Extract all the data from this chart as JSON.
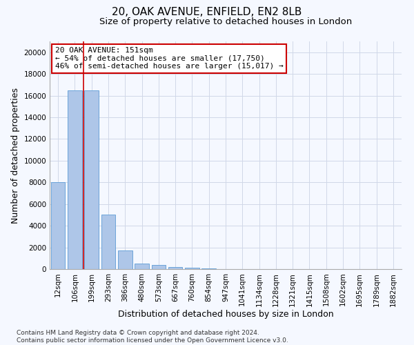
{
  "title_line1": "20, OAK AVENUE, ENFIELD, EN2 8LB",
  "title_line2": "Size of property relative to detached houses in London",
  "xlabel": "Distribution of detached houses by size in London",
  "ylabel": "Number of detached properties",
  "categories": [
    "12sqm",
    "106sqm",
    "199sqm",
    "293sqm",
    "386sqm",
    "480sqm",
    "573sqm",
    "667sqm",
    "760sqm",
    "854sqm",
    "947sqm",
    "1041sqm",
    "1134sqm",
    "1228sqm",
    "1321sqm",
    "1415sqm",
    "1508sqm",
    "1602sqm",
    "1695sqm",
    "1789sqm",
    "1882sqm"
  ],
  "values": [
    8000,
    16500,
    16500,
    5000,
    1700,
    500,
    400,
    200,
    150,
    80,
    0,
    0,
    0,
    0,
    0,
    0,
    0,
    0,
    0,
    0,
    0
  ],
  "bar_color": "#aec6e8",
  "bar_edge_color": "#5b9bd5",
  "grid_color": "#d0d8e8",
  "background_color": "#f5f8ff",
  "annotation_text": "20 OAK AVENUE: 151sqm\n← 54% of detached houses are smaller (17,750)\n46% of semi-detached houses are larger (15,017) →",
  "annotation_box_color": "#ffffff",
  "annotation_box_edge": "#cc0000",
  "red_line_x": 1.5,
  "ylim": [
    0,
    21000
  ],
  "yticks": [
    0,
    2000,
    4000,
    6000,
    8000,
    10000,
    12000,
    14000,
    16000,
    18000,
    20000
  ],
  "footnote": "Contains HM Land Registry data © Crown copyright and database right 2024.\nContains public sector information licensed under the Open Government Licence v3.0.",
  "title_fontsize": 11,
  "subtitle_fontsize": 9.5,
  "axis_label_fontsize": 9,
  "tick_fontsize": 7.5,
  "annotation_fontsize": 8
}
